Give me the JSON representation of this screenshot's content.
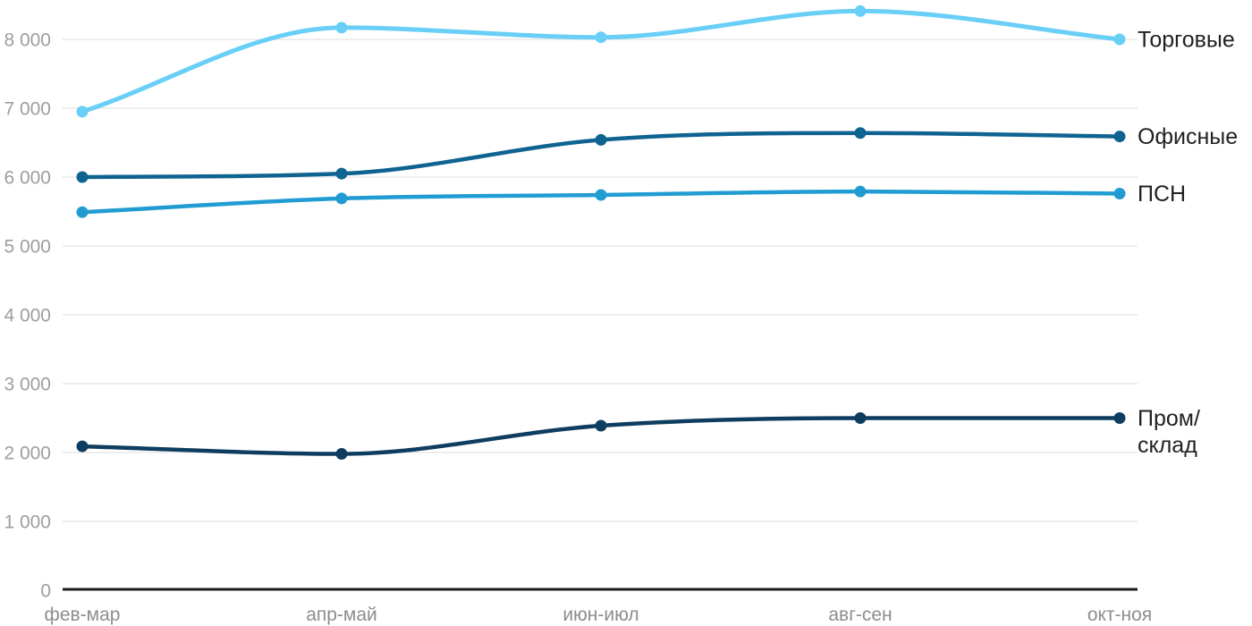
{
  "chart_data": {
    "type": "line",
    "title": "",
    "smooth": true,
    "grid": true,
    "legend_position": "line-end-right",
    "categories": [
      "фев-мар",
      "апр-май",
      "июн-июл",
      "авг-сен",
      "окт-ноя"
    ],
    "series": [
      {
        "name": "Торговые",
        "label_lines": [
          "Торговые"
        ],
        "color": "#69CFF6",
        "values": [
          6950,
          8170,
          8030,
          8410,
          8000
        ]
      },
      {
        "name": "Офисные",
        "label_lines": [
          "Офисные"
        ],
        "color": "#0F6391",
        "values": [
          6000,
          6050,
          6540,
          6640,
          6590
        ]
      },
      {
        "name": "ПСН",
        "label_lines": [
          "ПСН"
        ],
        "color": "#219CD2",
        "values": [
          5490,
          5690,
          5740,
          5790,
          5760
        ]
      },
      {
        "name": "Пром/склад",
        "label_lines": [
          "Пром/",
          "склад"
        ],
        "color": "#0E3D60",
        "values": [
          2090,
          1980,
          2390,
          2500,
          2500
        ]
      }
    ],
    "y_axis": {
      "min": 0,
      "max": 8500,
      "tick_step": 1000,
      "tick_labels": [
        "0",
        "1 000",
        "2 000",
        "3 000",
        "4 000",
        "5 000",
        "6 000",
        "7 000",
        "8 000"
      ]
    }
  },
  "colors": {
    "background": "#ffffff",
    "grid": "#e9e9e9",
    "axis": "#1c1c1c",
    "y_label": "#9e9e9e",
    "x_label": "#8d8d8d",
    "series_label": "#212121"
  }
}
